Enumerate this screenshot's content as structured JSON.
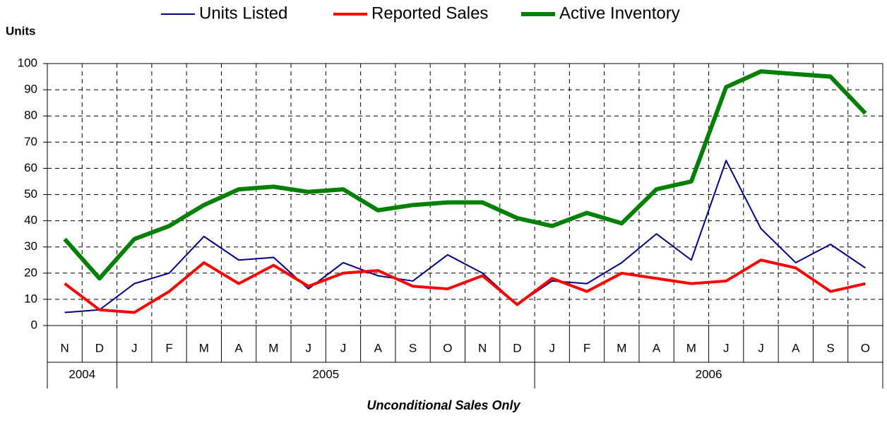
{
  "chart_data": {
    "type": "line",
    "y_label": "Units",
    "footnote": "Unconditional Sales Only",
    "categories": [
      "N",
      "D",
      "J",
      "F",
      "M",
      "A",
      "M",
      "J",
      "J",
      "A",
      "S",
      "O",
      "N",
      "D",
      "J",
      "F",
      "M",
      "A",
      "M",
      "J",
      "J",
      "A",
      "S",
      "O"
    ],
    "years": [
      "2004",
      "2005",
      "2006"
    ],
    "series": [
      {
        "name": "Units Listed",
        "color": "#000080",
        "line_width": 2,
        "values": [
          5,
          6,
          16,
          20,
          34,
          25,
          26,
          14,
          24,
          19,
          17,
          27,
          20,
          8,
          17,
          16,
          24,
          35,
          25,
          63,
          37,
          24,
          31,
          22
        ]
      },
      {
        "name": "Reported Sales",
        "color": "#ff0000",
        "line_width": 4,
        "values": [
          16,
          6,
          5,
          13,
          24,
          16,
          23,
          15,
          20,
          21,
          15,
          14,
          19,
          8,
          18,
          13,
          20,
          18,
          16,
          17,
          25,
          22,
          13,
          16
        ]
      },
      {
        "name": "Active Inventory",
        "color": "#008000",
        "line_width": 6,
        "values": [
          33,
          18,
          33,
          38,
          46,
          52,
          53,
          51,
          52,
          44,
          46,
          47,
          47,
          41,
          38,
          43,
          39,
          52,
          55,
          91,
          97,
          96,
          95,
          81
        ]
      }
    ],
    "ylim": [
      0,
      100
    ],
    "yticks": [
      0,
      10,
      20,
      30,
      40,
      50,
      60,
      70,
      80,
      90,
      100
    ],
    "grid": true
  }
}
